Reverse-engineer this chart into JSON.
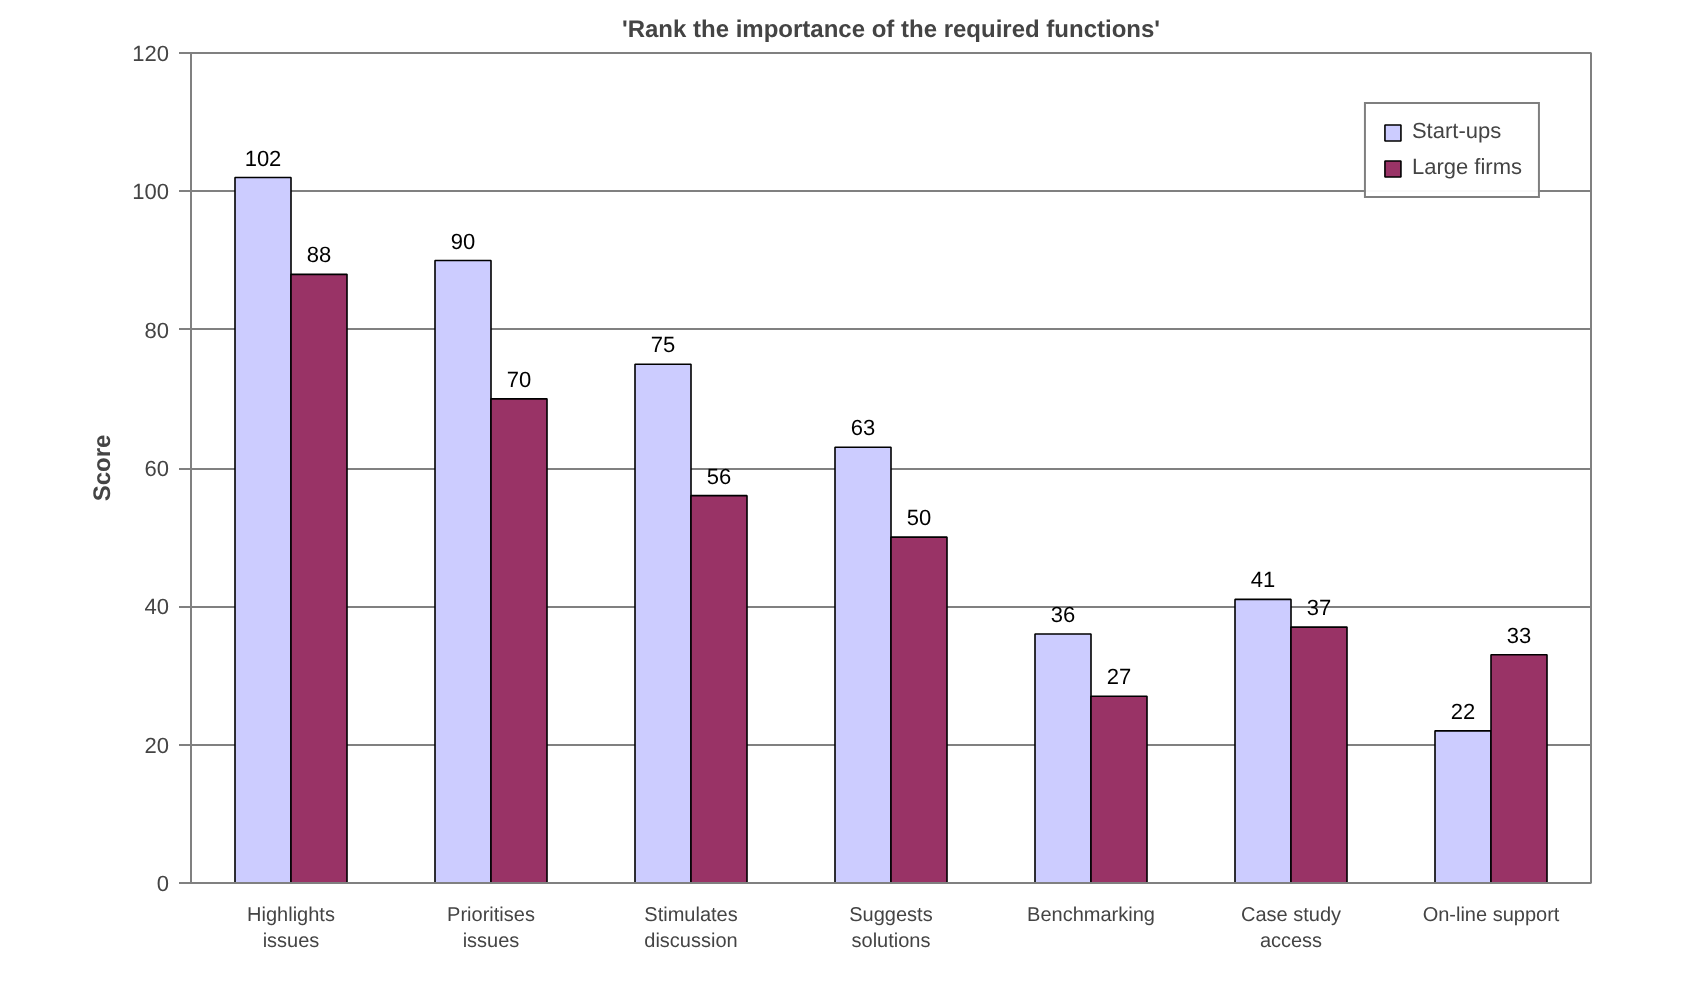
{
  "chart_data": {
    "type": "bar",
    "title": "'Rank the importance of the required functions'",
    "ylabel": "Score",
    "categories": [
      "Highlights\nissues",
      "Prioritises\nissues",
      "Stimulates\ndiscussion",
      "Suggests\nsolutions",
      "Benchmarking",
      "Case study\naccess",
      "On-line support"
    ],
    "series": [
      {
        "name": "Start-ups",
        "color": "#ccccff",
        "values": [
          102,
          90,
          75,
          63,
          36,
          41,
          22
        ]
      },
      {
        "name": "Large firms",
        "color": "#993366",
        "values": [
          88,
          70,
          56,
          50,
          27,
          37,
          33
        ]
      }
    ],
    "ylim": [
      0,
      120
    ],
    "yticks": [
      0,
      20,
      40,
      60,
      80,
      100,
      120
    ],
    "grid": "y",
    "legend": "top right",
    "data_labels": true
  }
}
